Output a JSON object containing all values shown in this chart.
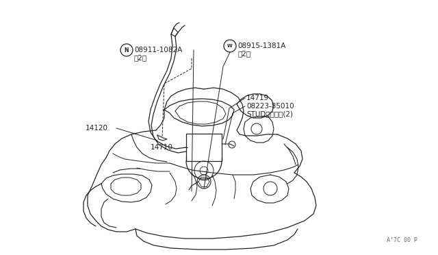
{
  "bg_color": "#ffffff",
  "line_color": "#222222",
  "diagram_id": "A’7C 00 P",
  "label_n": "ⓝ 08911-1082A",
  "label_n2": "（2）",
  "label_w": "Ⓦ 08915-1381A",
  "label_w2": "（2）",
  "label_14719": "14719",
  "label_08223": "08223-85010",
  "label_stud": "STUDスタッド(2)",
  "label_14120": "14120",
  "label_14710": "14710"
}
